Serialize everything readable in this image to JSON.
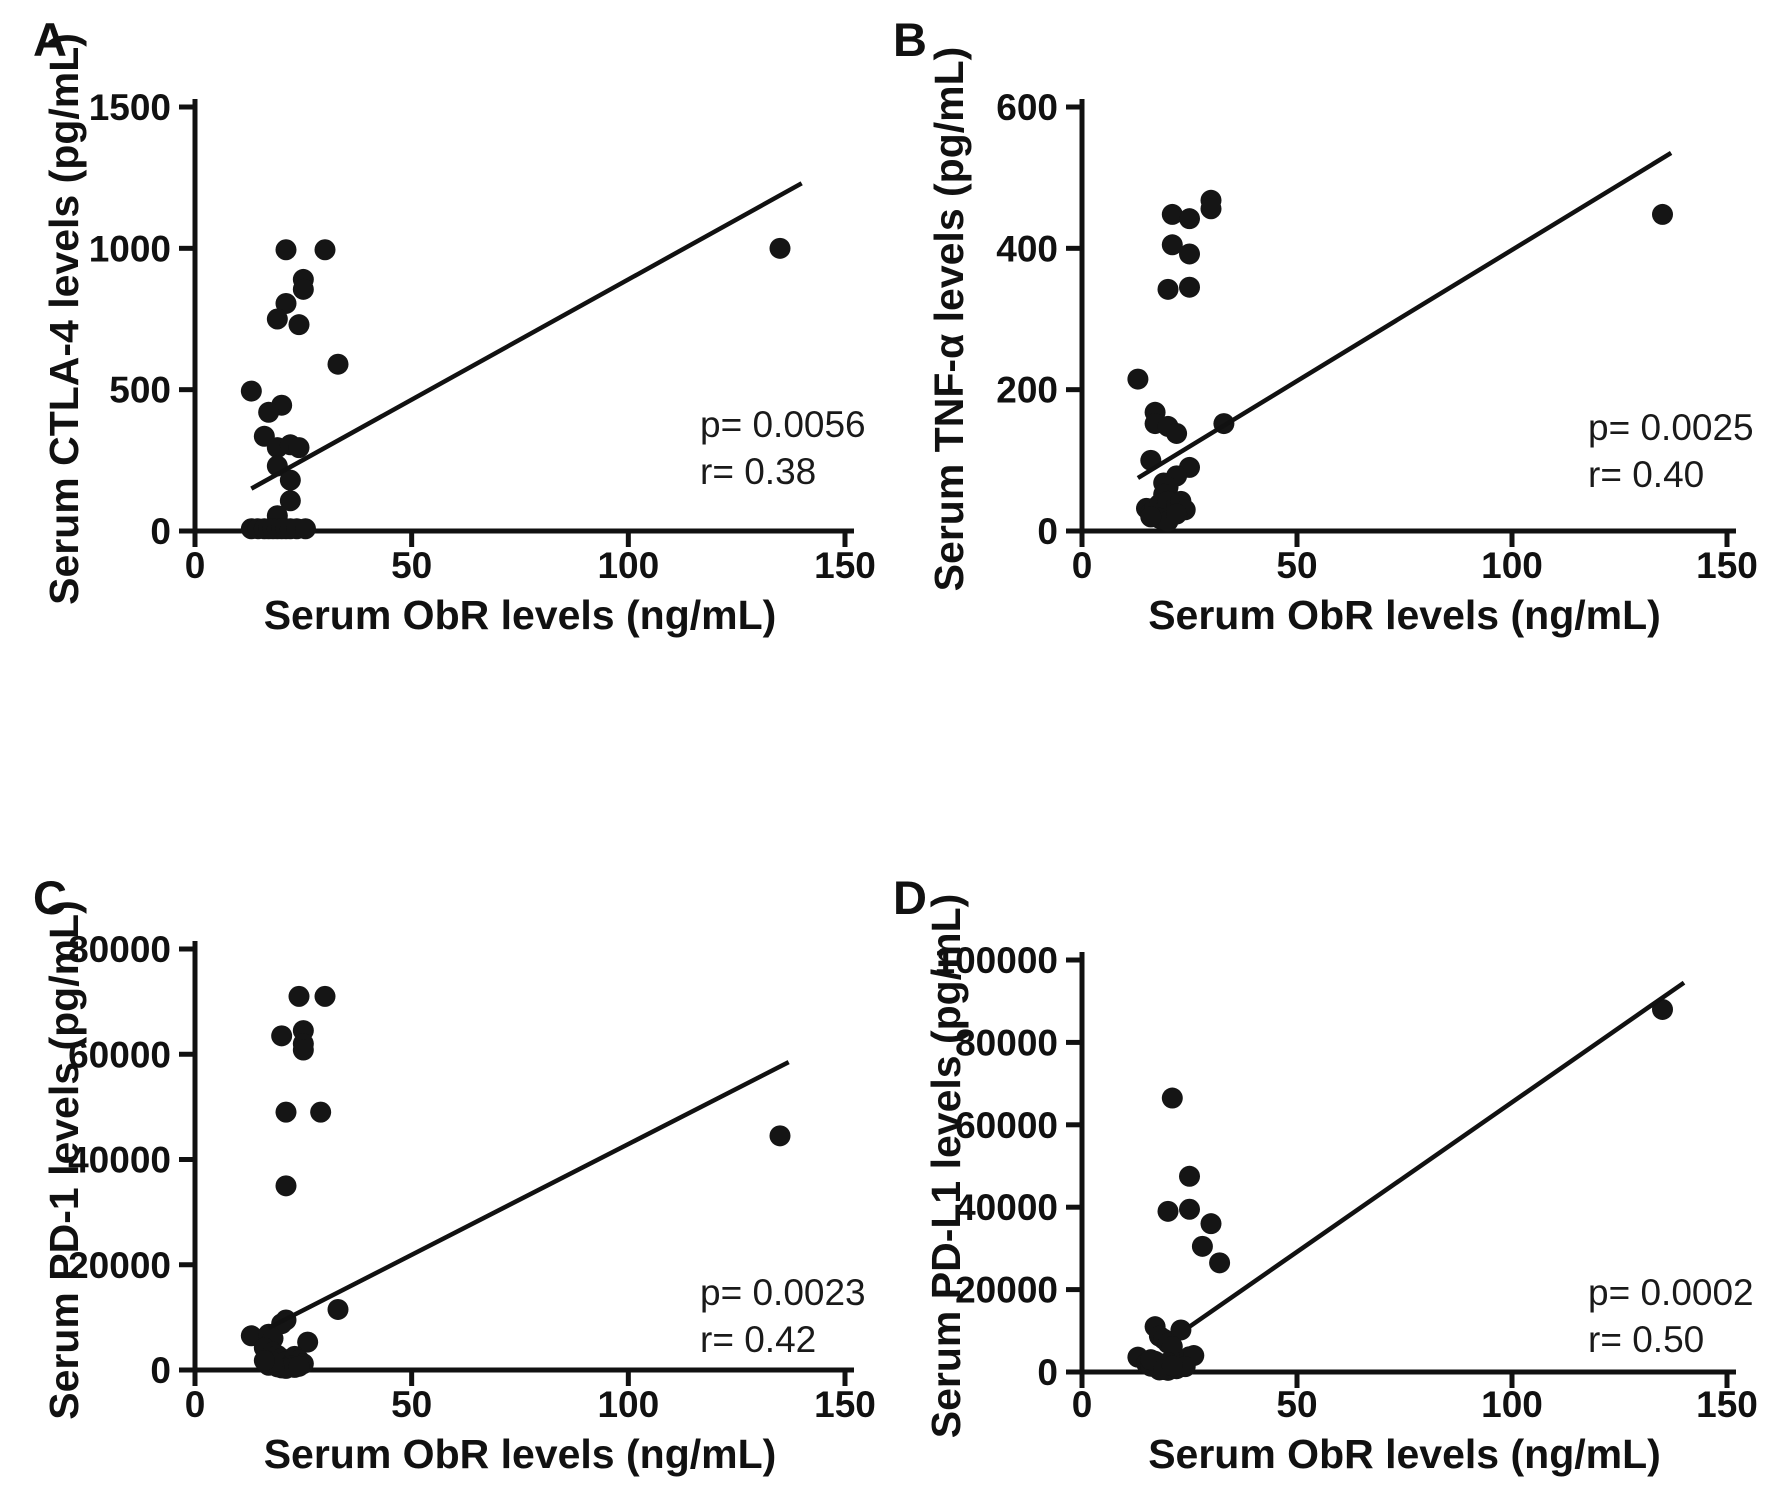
{
  "figure": {
    "background": "#ffffff",
    "ink": "#111111",
    "point_color": "#151515",
    "shared_x_label": "Serum ObR levels (ng/mL)"
  },
  "chart_data": [
    {
      "type": "scatter",
      "panel": "A",
      "title": "",
      "xlabel": "Serum ObR levels (ng/mL)",
      "ylabel": "Serum CTLA-4 levels (pg/mL)",
      "xlim": [
        0,
        150
      ],
      "ylim": [
        0,
        1500
      ],
      "x_ticks": [
        0,
        50,
        100,
        150
      ],
      "y_ticks": [
        0,
        500,
        1000,
        1500
      ],
      "grid": false,
      "points": [
        [
          21,
          995
        ],
        [
          30,
          995
        ],
        [
          25,
          890
        ],
        [
          25,
          855
        ],
        [
          21,
          805
        ],
        [
          19,
          750
        ],
        [
          24,
          730
        ],
        [
          33,
          590
        ],
        [
          13,
          495
        ],
        [
          20,
          445
        ],
        [
          17,
          420
        ],
        [
          16,
          335
        ],
        [
          19,
          295
        ],
        [
          22,
          305
        ],
        [
          24,
          295
        ],
        [
          19,
          230
        ],
        [
          22,
          180
        ],
        [
          22,
          107
        ],
        [
          19,
          54
        ],
        [
          13,
          8
        ],
        [
          14.5,
          8
        ],
        [
          16,
          8
        ],
        [
          17,
          8
        ],
        [
          18,
          8
        ],
        [
          19,
          8
        ],
        [
          20,
          8
        ],
        [
          21,
          8
        ],
        [
          22,
          8
        ],
        [
          23.5,
          8
        ],
        [
          25.5,
          8
        ],
        [
          135,
          1000
        ]
      ],
      "trendline": {
        "x1": 13,
        "y1": 150,
        "x2": 140,
        "y2": 1230
      },
      "annotations": {
        "p": "p= 0.0056",
        "r": "r= 0.38"
      }
    },
    {
      "type": "scatter",
      "panel": "B",
      "title": "",
      "xlabel": "Serum ObR levels (ng/mL)",
      "ylabel": "Serum TNF-α  levels (pg/mL)",
      "xlim": [
        0,
        150
      ],
      "ylim": [
        0,
        600
      ],
      "x_ticks": [
        0,
        50,
        100,
        150
      ],
      "y_ticks": [
        0,
        200,
        400,
        600
      ],
      "grid": false,
      "points": [
        [
          30,
          468
        ],
        [
          30,
          456
        ],
        [
          21,
          448
        ],
        [
          25,
          442
        ],
        [
          135,
          448
        ],
        [
          21,
          405
        ],
        [
          25,
          392
        ],
        [
          20,
          342
        ],
        [
          25,
          345
        ],
        [
          13,
          215
        ],
        [
          17,
          168
        ],
        [
          17,
          152
        ],
        [
          20,
          148
        ],
        [
          22,
          138
        ],
        [
          33,
          152
        ],
        [
          16,
          100
        ],
        [
          25,
          90
        ],
        [
          22,
          78
        ],
        [
          19,
          68
        ],
        [
          20,
          62
        ],
        [
          19,
          52
        ],
        [
          15,
          32
        ],
        [
          16,
          26
        ],
        [
          17,
          33
        ],
        [
          18,
          38
        ],
        [
          19,
          28
        ],
        [
          20,
          42
        ],
        [
          21,
          30
        ],
        [
          22,
          36
        ],
        [
          23,
          42
        ],
        [
          24,
          30
        ],
        [
          18,
          18
        ],
        [
          20,
          14
        ],
        [
          22,
          24
        ],
        [
          16,
          20
        ]
      ],
      "trendline": {
        "x1": 13,
        "y1": 75,
        "x2": 137,
        "y2": 535
      },
      "annotations": {
        "p": "p= 0.0025",
        "r": "r= 0.40"
      }
    },
    {
      "type": "scatter",
      "panel": "C",
      "title": "",
      "xlabel": "Serum ObR levels (ng/mL)",
      "ylabel": "Serum PD-1 levels (pg/mL)",
      "xlim": [
        0,
        150
      ],
      "ylim": [
        0,
        80000
      ],
      "x_ticks": [
        0,
        50,
        100,
        150
      ],
      "y_ticks": [
        0,
        20000,
        40000,
        60000,
        80000
      ],
      "grid": false,
      "points": [
        [
          24,
          71000
        ],
        [
          30,
          71000
        ],
        [
          20,
          63500
        ],
        [
          25,
          64500
        ],
        [
          25,
          62000
        ],
        [
          25,
          60800
        ],
        [
          21,
          49000
        ],
        [
          29,
          49000
        ],
        [
          21,
          35000
        ],
        [
          135,
          44500
        ],
        [
          33,
          11500
        ],
        [
          21,
          9500
        ],
        [
          20,
          8800
        ],
        [
          13,
          6500
        ],
        [
          17,
          6800
        ],
        [
          18,
          6000
        ],
        [
          26,
          5300
        ],
        [
          16,
          4200
        ],
        [
          18,
          3400
        ],
        [
          19,
          2800
        ],
        [
          20,
          2200
        ],
        [
          21,
          1600
        ],
        [
          22,
          1100
        ],
        [
          23,
          2600
        ],
        [
          24,
          1900
        ],
        [
          25,
          1200
        ],
        [
          17,
          900
        ],
        [
          19,
          600
        ],
        [
          20,
          400
        ],
        [
          22,
          800
        ],
        [
          21,
          300
        ],
        [
          18,
          1500
        ],
        [
          23,
          500
        ],
        [
          16,
          1800
        ],
        [
          24,
          700
        ]
      ],
      "trendline": {
        "x1": 17,
        "y1": 8000,
        "x2": 137,
        "y2": 58500
      },
      "annotations": {
        "p": "p= 0.0023",
        "r": "r= 0.42"
      }
    },
    {
      "type": "scatter",
      "panel": "D",
      "title": "",
      "xlabel": "Serum ObR levels (ng/mL)",
      "ylabel": "Serum PD-L1 levels (pg/mL)",
      "xlim": [
        0,
        150
      ],
      "ylim": [
        0,
        100000
      ],
      "x_ticks": [
        0,
        50,
        100,
        150
      ],
      "y_ticks": [
        0,
        20000,
        40000,
        60000,
        80000,
        100000
      ],
      "grid": false,
      "points": [
        [
          135,
          88000
        ],
        [
          21,
          66500
        ],
        [
          25,
          47500
        ],
        [
          20,
          39000
        ],
        [
          25,
          39500
        ],
        [
          30,
          36000
        ],
        [
          28,
          30500
        ],
        [
          32,
          26500
        ],
        [
          17,
          11000
        ],
        [
          23,
          10200
        ],
        [
          18,
          8700
        ],
        [
          19,
          8000
        ],
        [
          20,
          7000
        ],
        [
          21,
          6200
        ],
        [
          13,
          3600
        ],
        [
          15,
          2100
        ],
        [
          16,
          1400
        ],
        [
          17,
          2600
        ],
        [
          18,
          1100
        ],
        [
          19,
          1900
        ],
        [
          20,
          2300
        ],
        [
          21,
          900
        ],
        [
          22,
          1700
        ],
        [
          23,
          2200
        ],
        [
          25,
          3700
        ],
        [
          26,
          4000
        ],
        [
          18,
          500
        ],
        [
          20,
          400
        ],
        [
          22,
          800
        ],
        [
          24,
          1300
        ],
        [
          16,
          3000
        ],
        [
          19,
          600
        ],
        [
          21,
          1500
        ]
      ],
      "trendline": {
        "x1": 25,
        "y1": 11000,
        "x2": 140,
        "y2": 94500
      },
      "annotations": {
        "p": "p= 0.0002",
        "r": "r= 0.50"
      }
    }
  ]
}
